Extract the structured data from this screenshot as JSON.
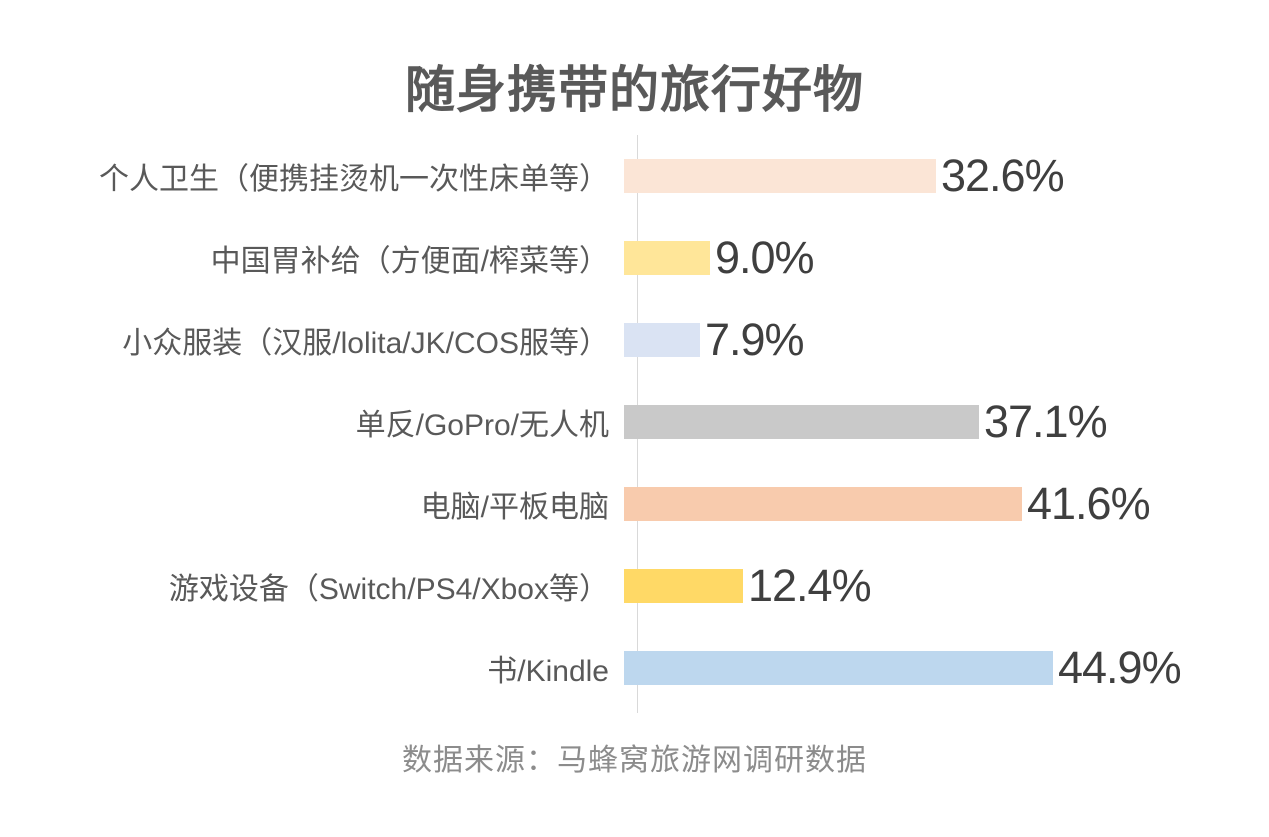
{
  "title": "随身携带的旅行好物",
  "source": "数据来源：马蜂窝旅游网调研数据",
  "colors": {
    "background": "#ffffff",
    "title_text": "#595959",
    "category_text": "#595959",
    "value_text": "#3f3f3f",
    "source_text": "#8c8c8c",
    "axis_line": "#d9d9d9"
  },
  "chart_data": {
    "type": "bar",
    "orientation": "horizontal",
    "title": "随身携带的旅行好物",
    "xlabel": "",
    "ylabel": "",
    "xlim": [
      0,
      46
    ],
    "grid": false,
    "legend": false,
    "categories": [
      "个人卫生（便携挂烫机一次性床单等）",
      "中国胃补给（方便面/榨菜等）",
      "小众服装（汉服/lolita/JK/COS服等）",
      "单反/GoPro/无人机",
      "电脑/平板电脑",
      "游戏设备（Switch/PS4/Xbox等）",
      "书/Kindle"
    ],
    "values": [
      32.6,
      9.0,
      7.9,
      37.1,
      41.6,
      12.4,
      44.9
    ],
    "value_labels": [
      "32.6%",
      "9.0%",
      "7.9%",
      "37.1%",
      "41.6%",
      "12.4%",
      "44.9%"
    ],
    "bar_colors": [
      "#fbe5d6",
      "#ffe699",
      "#dae3f3",
      "#c9c9c9",
      "#f8cbad",
      "#ffd966",
      "#bdd7ee"
    ],
    "source_note": "数据来源：马蜂窝旅游网调研数据"
  }
}
